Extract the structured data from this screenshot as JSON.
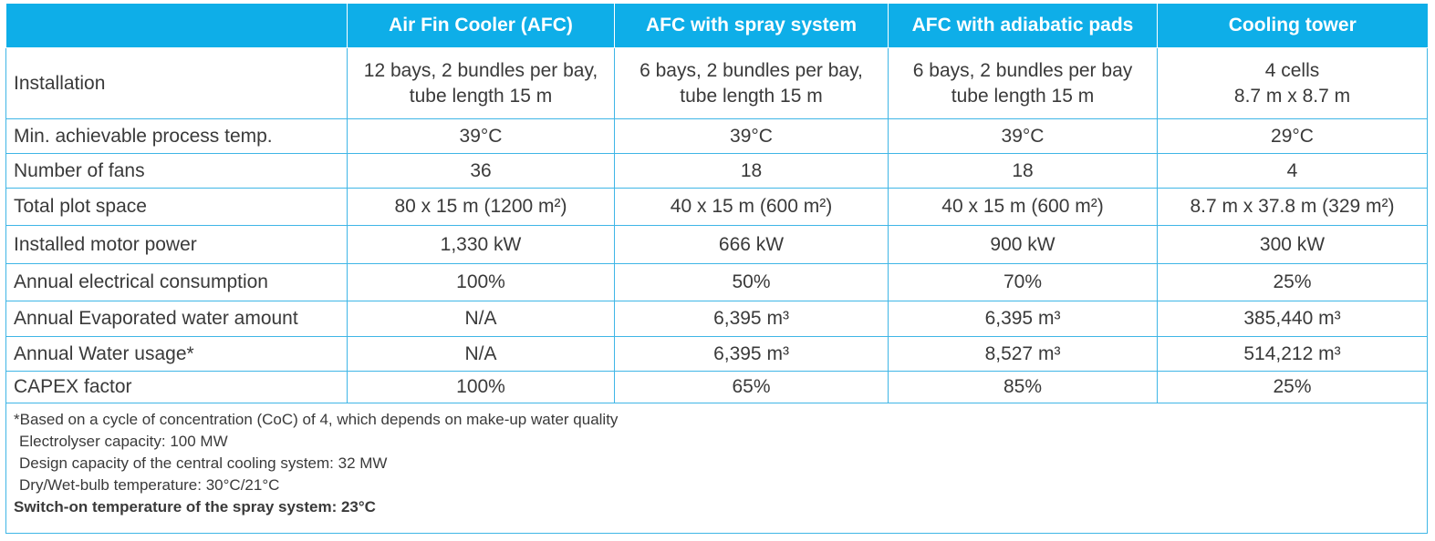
{
  "table": {
    "header": [
      "Air Fin Cooler (AFC)",
      "AFC with spray system",
      "AFC with adiabatic pads",
      "Cooling tower"
    ],
    "rows": [
      {
        "label": "Installation",
        "cells": [
          [
            "12 bays, 2 bundles per bay,",
            "tube length 15 m"
          ],
          [
            "6 bays, 2 bundles per bay,",
            "tube length 15 m"
          ],
          [
            "6 bays, 2 bundles per bay",
            "tube length 15 m"
          ],
          [
            "4 cells",
            "8.7 m x 8.7 m"
          ]
        ]
      },
      {
        "label": "Min. achievable process temp.",
        "cells": [
          "39°C",
          "39°C",
          "39°C",
          "29°C"
        ]
      },
      {
        "label": "Number of fans",
        "cells": [
          "36",
          "18",
          "18",
          "4"
        ]
      },
      {
        "label": "Total plot space",
        "cells": [
          "80 x 15 m (1200 m²)",
          "40 x 15 m (600 m²)",
          "40 x 15 m (600 m²)",
          "8.7 m x 37.8 m (329 m²)"
        ]
      },
      {
        "label": "Installed motor power",
        "cells": [
          "1,330 kW",
          "666 kW",
          "900 kW",
          "300 kW"
        ]
      },
      {
        "label": "Annual electrical consumption",
        "cells": [
          "100%",
          "50%",
          "70%",
          "25%"
        ]
      },
      {
        "label": "Annual Evaporated water amount",
        "cells": [
          "N/A",
          "6,395 m³",
          "6,395 m³",
          "385,440 m³"
        ]
      },
      {
        "label": "Annual Water usage*",
        "cells": [
          "N/A",
          "6,395 m³",
          "8,527 m³",
          "514,212 m³"
        ]
      },
      {
        "label": "CAPEX factor",
        "cells": [
          "100%",
          "65%",
          "85%",
          "25%"
        ]
      }
    ],
    "footnotes": [
      "*Based on a cycle of concentration (CoC) of 4, which depends on make-up water quality",
      "Electrolyser capacity: 100 MW",
      "Design capacity of the central cooling system: 32 MW",
      "Dry/Wet-bulb temperature: 30°C/21°C"
    ],
    "footnote_bold": "Switch-on temperature of the spray system: 23°C"
  }
}
